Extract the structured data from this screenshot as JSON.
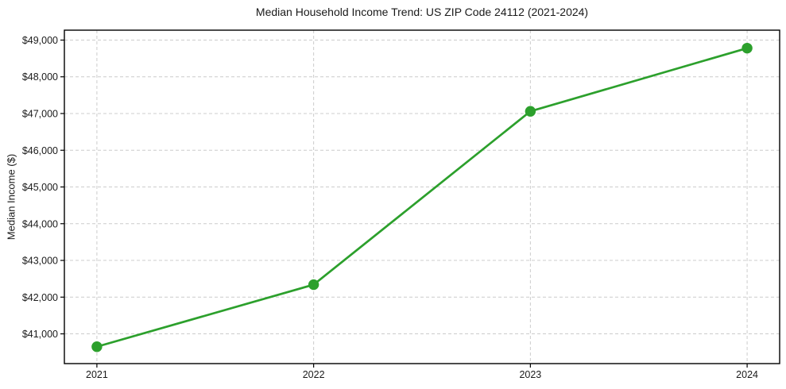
{
  "figure": {
    "background": "#ffffff"
  },
  "chart_data": {
    "type": "line",
    "title": "Median Household Income Trend: US ZIP Code 24112 (2021-2024)",
    "xlabel": "",
    "ylabel": "Median Income ($)",
    "categories": [
      "2021",
      "2022",
      "2023",
      "2024"
    ],
    "x": [
      2021,
      2022,
      2023,
      2024
    ],
    "series": [
      {
        "name": "Median Household Income",
        "values": [
          40650,
          42340,
          47060,
          48780
        ],
        "color": "#2ca02c",
        "marker": "circle"
      }
    ],
    "x_ticks": {
      "values": [
        2021,
        2022,
        2023,
        2024
      ],
      "labels": [
        "2021",
        "2022",
        "2023",
        "2024"
      ]
    },
    "y_ticks": {
      "values": [
        41000,
        42000,
        43000,
        44000,
        45000,
        46000,
        47000,
        48000,
        49000
      ],
      "labels": [
        "$41,000",
        "$42,000",
        "$43,000",
        "$44,000",
        "$45,000",
        "$46,000",
        "$47,000",
        "$48,000",
        "$49,000"
      ]
    },
    "xlim": [
      2020.85,
      2024.15
    ],
    "ylim": [
      40190,
      49270
    ],
    "grid": true,
    "grid_style": "dashed",
    "grid_color": "#cccccc",
    "axis_color": "#000000",
    "text_color": "#1a1a1a",
    "legend": "none"
  }
}
